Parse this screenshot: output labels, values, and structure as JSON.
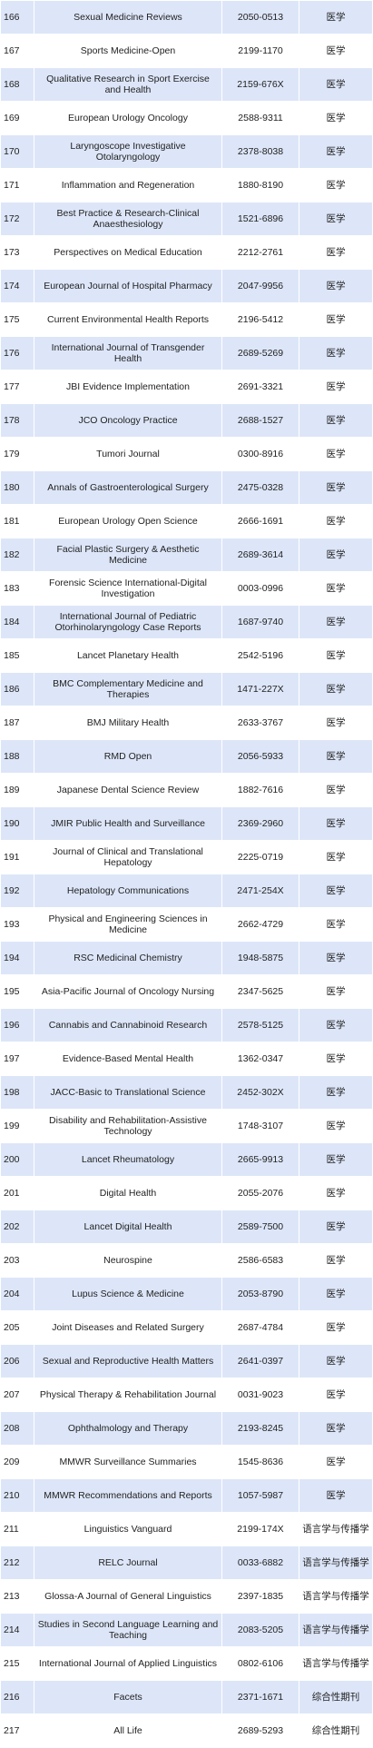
{
  "rows": [
    {
      "no": "166",
      "title": "Sexual Medicine Reviews",
      "issn": "2050-0513",
      "category": "医学"
    },
    {
      "no": "167",
      "title": "Sports Medicine-Open",
      "issn": "2199-1170",
      "category": "医学"
    },
    {
      "no": "168",
      "title": "Qualitative Research in Sport Exercise and Health",
      "issn": "2159-676X",
      "category": "医学"
    },
    {
      "no": "169",
      "title": "European Urology Oncology",
      "issn": "2588-9311",
      "category": "医学"
    },
    {
      "no": "170",
      "title": "Laryngoscope Investigative Otolaryngology",
      "issn": "2378-8038",
      "category": "医学"
    },
    {
      "no": "171",
      "title": "Inflammation and Regeneration",
      "issn": "1880-8190",
      "category": "医学"
    },
    {
      "no": "172",
      "title": "Best Practice & Research-Clinical Anaesthesiology",
      "issn": "1521-6896",
      "category": "医学"
    },
    {
      "no": "173",
      "title": "Perspectives on Medical Education",
      "issn": "2212-2761",
      "category": "医学"
    },
    {
      "no": "174",
      "title": "European Journal of Hospital Pharmacy",
      "issn": "2047-9956",
      "category": "医学"
    },
    {
      "no": "175",
      "title": "Current Environmental Health Reports",
      "issn": "2196-5412",
      "category": "医学"
    },
    {
      "no": "176",
      "title": "International Journal of Transgender Health",
      "issn": "2689-5269",
      "category": "医学"
    },
    {
      "no": "177",
      "title": "JBI Evidence Implementation",
      "issn": "2691-3321",
      "category": "医学"
    },
    {
      "no": "178",
      "title": "JCO Oncology Practice",
      "issn": "2688-1527",
      "category": "医学"
    },
    {
      "no": "179",
      "title": "Tumori Journal",
      "issn": "0300-8916",
      "category": "医学"
    },
    {
      "no": "180",
      "title": "Annals of Gastroenterological Surgery",
      "issn": "2475-0328",
      "category": "医学"
    },
    {
      "no": "181",
      "title": "European Urology Open Science",
      "issn": "2666-1691",
      "category": "医学"
    },
    {
      "no": "182",
      "title": "Facial Plastic Surgery & Aesthetic Medicine",
      "issn": "2689-3614",
      "category": "医学"
    },
    {
      "no": "183",
      "title": "Forensic Science International-Digital Investigation",
      "issn": "0003-0996",
      "category": "医学"
    },
    {
      "no": "184",
      "title": "International Journal of Pediatric Otorhinolaryngology Case Reports",
      "issn": "1687-9740",
      "category": "医学"
    },
    {
      "no": "185",
      "title": "Lancet Planetary Health",
      "issn": "2542-5196",
      "category": "医学"
    },
    {
      "no": "186",
      "title": "BMC Complementary Medicine and Therapies",
      "issn": "1471-227X",
      "category": "医学"
    },
    {
      "no": "187",
      "title": "BMJ Military Health",
      "issn": "2633-3767",
      "category": "医学"
    },
    {
      "no": "188",
      "title": "RMD Open",
      "issn": "2056-5933",
      "category": "医学"
    },
    {
      "no": "189",
      "title": "Japanese Dental Science Review",
      "issn": "1882-7616",
      "category": "医学"
    },
    {
      "no": "190",
      "title": "JMIR Public Health and Surveillance",
      "issn": "2369-2960",
      "category": "医学"
    },
    {
      "no": "191",
      "title": "Journal of Clinical and Translational Hepatology",
      "issn": "2225-0719",
      "category": "医学"
    },
    {
      "no": "192",
      "title": "Hepatology Communications",
      "issn": "2471-254X",
      "category": "医学"
    },
    {
      "no": "193",
      "title": "Physical and Engineering Sciences in Medicine",
      "issn": "2662-4729",
      "category": "医学"
    },
    {
      "no": "194",
      "title": "RSC Medicinal Chemistry",
      "issn": "1948-5875",
      "category": "医学"
    },
    {
      "no": "195",
      "title": "Asia-Pacific Journal of Oncology Nursing",
      "issn": "2347-5625",
      "category": "医学"
    },
    {
      "no": "196",
      "title": "Cannabis and Cannabinoid Research",
      "issn": "2578-5125",
      "category": "医学"
    },
    {
      "no": "197",
      "title": "Evidence-Based Mental Health",
      "issn": "1362-0347",
      "category": "医学"
    },
    {
      "no": "198",
      "title": "JACC-Basic to Translational Science",
      "issn": "2452-302X",
      "category": "医学"
    },
    {
      "no": "199",
      "title": "Disability and Rehabilitation-Assistive Technology",
      "issn": "1748-3107",
      "category": "医学"
    },
    {
      "no": "200",
      "title": "Lancet Rheumatology",
      "issn": "2665-9913",
      "category": "医学"
    },
    {
      "no": "201",
      "title": "Digital Health",
      "issn": "2055-2076",
      "category": "医学"
    },
    {
      "no": "202",
      "title": "Lancet Digital Health",
      "issn": "2589-7500",
      "category": "医学"
    },
    {
      "no": "203",
      "title": "Neurospine",
      "issn": "2586-6583",
      "category": "医学"
    },
    {
      "no": "204",
      "title": "Lupus Science & Medicine",
      "issn": "2053-8790",
      "category": "医学"
    },
    {
      "no": "205",
      "title": "Joint Diseases and Related Surgery",
      "issn": "2687-4784",
      "category": "医学"
    },
    {
      "no": "206",
      "title": "Sexual and Reproductive Health Matters",
      "issn": "2641-0397",
      "category": "医学"
    },
    {
      "no": "207",
      "title": "Physical Therapy & Rehabilitation Journal",
      "issn": "0031-9023",
      "category": "医学"
    },
    {
      "no": "208",
      "title": "Ophthalmology and Therapy",
      "issn": "2193-8245",
      "category": "医学"
    },
    {
      "no": "209",
      "title": "MMWR Surveillance Summaries",
      "issn": "1545-8636",
      "category": "医学"
    },
    {
      "no": "210",
      "title": "MMWR Recommendations and Reports",
      "issn": "1057-5987",
      "category": "医学"
    },
    {
      "no": "211",
      "title": "Linguistics Vanguard",
      "issn": "2199-174X",
      "category": "语言学与传播学"
    },
    {
      "no": "212",
      "title": "RELC Journal",
      "issn": "0033-6882",
      "category": "语言学与传播学"
    },
    {
      "no": "213",
      "title": "Glossa-A Journal of General Linguistics",
      "issn": "2397-1835",
      "category": "语言学与传播学"
    },
    {
      "no": "214",
      "title": "Studies in Second Language Learning and Teaching",
      "issn": "2083-5205",
      "category": "语言学与传播学"
    },
    {
      "no": "215",
      "title": "International Journal of Applied Linguistics",
      "issn": "0802-6106",
      "category": "语言学与传播学"
    },
    {
      "no": "216",
      "title": "Facets",
      "issn": "2371-1671",
      "category": "综合性期刊"
    },
    {
      "no": "217",
      "title": "All Life",
      "issn": "2689-5293",
      "category": "综合性期刊"
    }
  ]
}
